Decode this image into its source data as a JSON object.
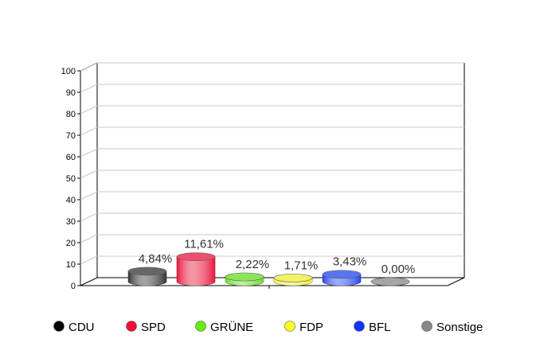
{
  "chart_data": {
    "type": "bar",
    "categories": [
      "CDU",
      "SPD",
      "GRÜNE",
      "FDP",
      "BFL",
      "Sonstige"
    ],
    "values": [
      4.84,
      11.61,
      2.22,
      1.71,
      3.43,
      0.0
    ],
    "value_labels": [
      "4,84%",
      "11,61%",
      "2,22%",
      "1,71%",
      "3,43%",
      "0,00%"
    ],
    "colors": [
      "#333333",
      "#e8143c",
      "#66dd22",
      "#eeee33",
      "#2244ee",
      "#888888"
    ],
    "legend_dot_colors": [
      "#000000",
      "#ee1133",
      "#66ee11",
      "#ffff22",
      "#1133ff",
      "#888888"
    ],
    "ylim": [
      0,
      100
    ],
    "yticks": [
      "0",
      "10",
      "20",
      "30",
      "40",
      "50",
      "60",
      "70",
      "80",
      "90",
      "100"
    ],
    "grid": true,
    "legend_position": "bottom",
    "title": "",
    "xlabel": "",
    "ylabel": ""
  }
}
